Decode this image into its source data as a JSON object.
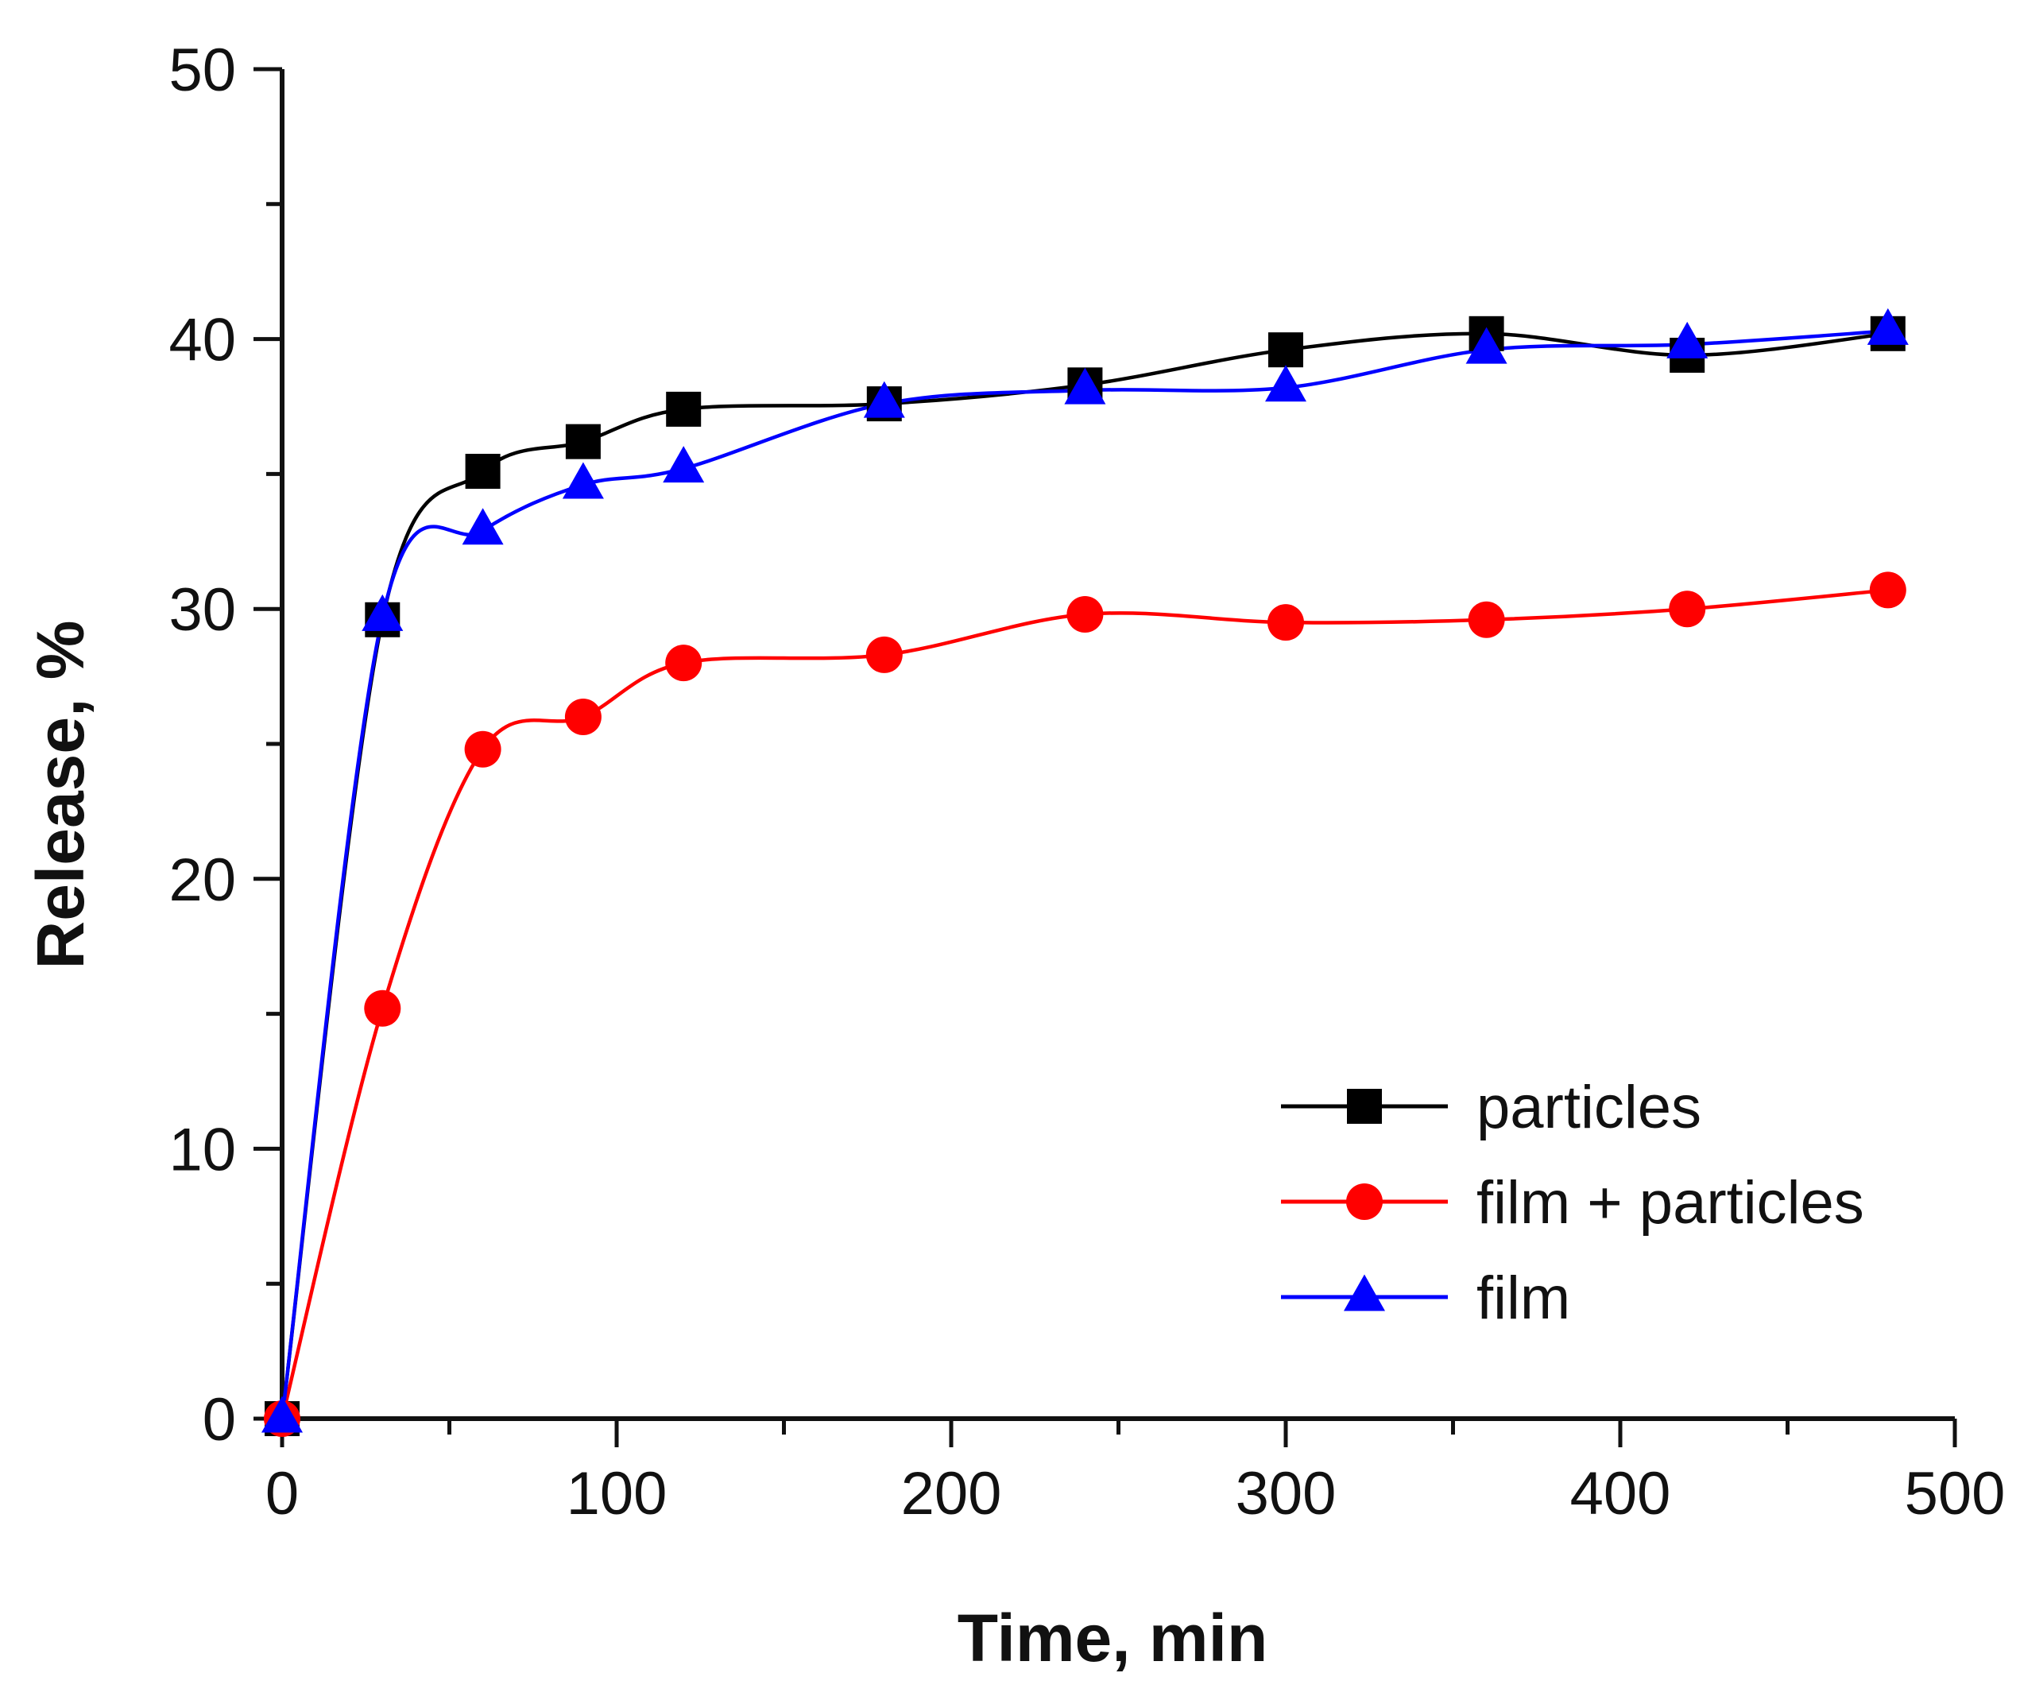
{
  "chart_data": {
    "type": "line",
    "title": "",
    "xlabel": "Time, min",
    "ylabel": "Release, %",
    "xlim": [
      0,
      500
    ],
    "ylim": [
      0,
      50
    ],
    "x_ticks": [
      0,
      100,
      200,
      300,
      400,
      500
    ],
    "y_ticks": [
      0,
      10,
      20,
      30,
      40,
      50
    ],
    "grid": false,
    "legend_position": "bottom-right",
    "series": [
      {
        "name": "particles",
        "color": "#000000",
        "marker": "square",
        "x": [
          0,
          30,
          60,
          90,
          120,
          180,
          240,
          300,
          360,
          420,
          480
        ],
        "y": [
          0,
          29.6,
          35.1,
          36.2,
          37.4,
          37.6,
          38.3,
          39.6,
          40.2,
          39.4,
          40.2
        ]
      },
      {
        "name": "film + particles",
        "color": "#ff0000",
        "marker": "circle",
        "x": [
          0,
          30,
          60,
          90,
          120,
          180,
          240,
          300,
          360,
          420,
          480
        ],
        "y": [
          0,
          15.2,
          24.8,
          26.0,
          28.0,
          28.3,
          29.8,
          29.5,
          29.6,
          30.0,
          30.7
        ]
      },
      {
        "name": "film",
        "color": "#0000ff",
        "marker": "triangle",
        "x": [
          0,
          30,
          60,
          90,
          120,
          180,
          240,
          300,
          360,
          420,
          480
        ],
        "y": [
          0,
          29.7,
          32.9,
          34.6,
          35.2,
          37.6,
          38.1,
          38.2,
          39.6,
          39.8,
          40.3
        ]
      }
    ]
  }
}
